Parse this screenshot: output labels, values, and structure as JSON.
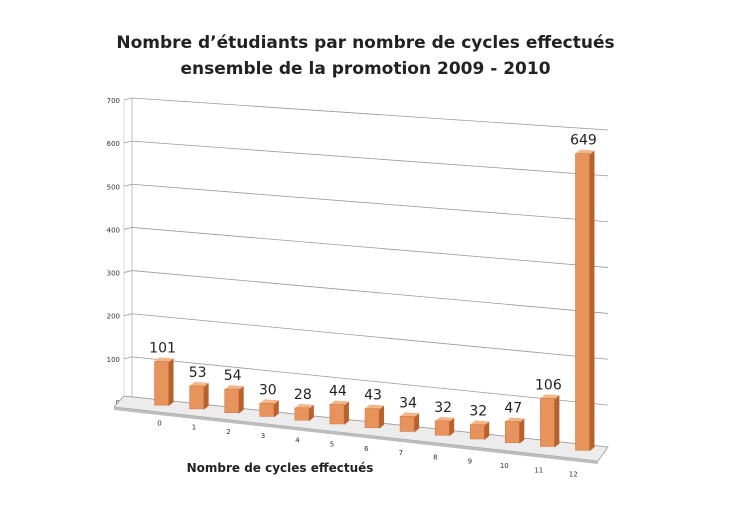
{
  "chart_data": {
    "type": "bar",
    "title": "Nombre d’étudiants par nombre de cycles effectués",
    "subtitle": "ensemble de la promotion 2009 - 2010",
    "xlabel": "Nombre de cycles effectués",
    "ylabel": "",
    "categories": [
      "0",
      "1",
      "2",
      "3",
      "4",
      "5",
      "6",
      "7",
      "8",
      "9",
      "10",
      "11",
      "12"
    ],
    "values": [
      101,
      53,
      54,
      30,
      28,
      44,
      43,
      34,
      32,
      32,
      47,
      106,
      649
    ],
    "data_labels": [
      "101",
      "53",
      "54",
      "30",
      "28",
      "44",
      "43",
      "34",
      "32",
      "32",
      "47",
      "106",
      "649"
    ],
    "ylim": [
      0,
      700
    ],
    "yticks": [
      "0",
      "100",
      "200",
      "300",
      "400",
      "500",
      "600",
      "700"
    ],
    "grid": true,
    "legend": "none",
    "bar_color": "#e8935b",
    "bar_side_color": "#b9602b",
    "bar_top_color": "#f3b68a",
    "style": "3d-perspective"
  }
}
